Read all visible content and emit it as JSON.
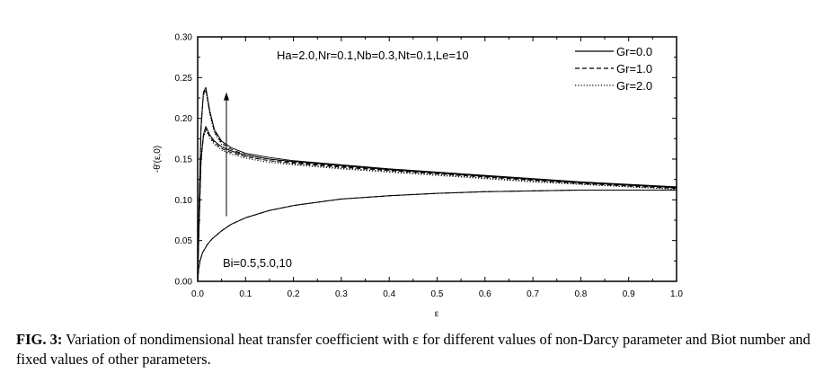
{
  "chart_data": {
    "type": "line",
    "xlabel": "ε",
    "ylabel": "-θ'(ε,0)",
    "xlim": [
      0.0,
      1.0
    ],
    "ylim": [
      0.0,
      0.3
    ],
    "x_ticks": [
      "0.0",
      "0.1",
      "0.2",
      "0.3",
      "0.4",
      "0.5",
      "0.6",
      "0.7",
      "0.8",
      "0.9",
      "1.0"
    ],
    "y_ticks": [
      "0.00",
      "0.05",
      "0.10",
      "0.15",
      "0.20",
      "0.25",
      "0.30"
    ],
    "grid": false,
    "legend_position": "top-right",
    "annotations": {
      "params": "Ha=2.0,Nr=0.1,Nb=0.3,Nt=0.1,Le=10",
      "bi": "Bi=0.5,5.0,10"
    },
    "series": [
      {
        "name": "Gr=0.0",
        "style": "solid"
      },
      {
        "name": "Gr=1.0",
        "style": "dashed"
      },
      {
        "name": "Gr=2.0",
        "style": "dotted"
      }
    ],
    "curves": [
      {
        "series": "Gr=0.0",
        "bi": 0.5,
        "x": [
          0.0,
          0.002,
          0.005,
          0.01,
          0.02,
          0.03,
          0.05,
          0.07,
          0.1,
          0.15,
          0.2,
          0.3,
          0.4,
          0.5,
          0.6,
          0.7,
          0.8,
          0.9,
          1.0
        ],
        "y": [
          0.0,
          0.015,
          0.025,
          0.035,
          0.045,
          0.052,
          0.062,
          0.07,
          0.078,
          0.087,
          0.093,
          0.101,
          0.105,
          0.108,
          0.11,
          0.111,
          0.112,
          0.112,
          0.112
        ]
      },
      {
        "series": "Gr=1.0",
        "bi": 0.5,
        "x": [
          0.0,
          0.002,
          0.005,
          0.01,
          0.02,
          0.03,
          0.05,
          0.07,
          0.1,
          0.15,
          0.2,
          0.3,
          0.4,
          0.5,
          0.6,
          0.7,
          0.8,
          0.9,
          1.0
        ],
        "y": [
          0.0,
          0.015,
          0.025,
          0.035,
          0.045,
          0.052,
          0.062,
          0.07,
          0.078,
          0.087,
          0.093,
          0.101,
          0.105,
          0.108,
          0.11,
          0.111,
          0.112,
          0.112,
          0.112
        ]
      },
      {
        "series": "Gr=2.0",
        "bi": 0.5,
        "x": [
          0.0,
          0.002,
          0.005,
          0.01,
          0.02,
          0.03,
          0.05,
          0.07,
          0.1,
          0.15,
          0.2,
          0.3,
          0.4,
          0.5,
          0.6,
          0.7,
          0.8,
          0.9,
          1.0
        ],
        "y": [
          0.0,
          0.015,
          0.025,
          0.035,
          0.045,
          0.052,
          0.062,
          0.07,
          0.078,
          0.087,
          0.093,
          0.101,
          0.105,
          0.108,
          0.11,
          0.111,
          0.112,
          0.112,
          0.112
        ]
      },
      {
        "series": "Gr=0.0",
        "bi": 5.0,
        "x": [
          0.0,
          0.003,
          0.007,
          0.012,
          0.017,
          0.025,
          0.035,
          0.05,
          0.07,
          0.1,
          0.15,
          0.2,
          0.3,
          0.4,
          0.5,
          0.6,
          0.7,
          0.8,
          0.9,
          1.0
        ],
        "y": [
          0.0,
          0.07,
          0.15,
          0.18,
          0.19,
          0.18,
          0.172,
          0.165,
          0.16,
          0.155,
          0.15,
          0.147,
          0.142,
          0.137,
          0.133,
          0.129,
          0.125,
          0.121,
          0.118,
          0.115
        ]
      },
      {
        "series": "Gr=1.0",
        "bi": 5.0,
        "x": [
          0.0,
          0.003,
          0.007,
          0.012,
          0.017,
          0.025,
          0.035,
          0.05,
          0.07,
          0.1,
          0.15,
          0.2,
          0.3,
          0.4,
          0.5,
          0.6,
          0.7,
          0.8,
          0.9,
          1.0
        ],
        "y": [
          0.0,
          0.07,
          0.148,
          0.178,
          0.188,
          0.178,
          0.17,
          0.163,
          0.158,
          0.153,
          0.148,
          0.145,
          0.14,
          0.136,
          0.132,
          0.128,
          0.124,
          0.12,
          0.117,
          0.114
        ]
      },
      {
        "series": "Gr=2.0",
        "bi": 5.0,
        "x": [
          0.0,
          0.003,
          0.007,
          0.012,
          0.017,
          0.025,
          0.035,
          0.05,
          0.07,
          0.1,
          0.15,
          0.2,
          0.3,
          0.4,
          0.5,
          0.6,
          0.7,
          0.8,
          0.9,
          1.0
        ],
        "y": [
          0.0,
          0.07,
          0.146,
          0.176,
          0.186,
          0.176,
          0.168,
          0.161,
          0.156,
          0.151,
          0.146,
          0.143,
          0.138,
          0.134,
          0.13,
          0.126,
          0.122,
          0.119,
          0.116,
          0.113
        ]
      },
      {
        "series": "Gr=0.0",
        "bi": 10,
        "x": [
          0.0,
          0.003,
          0.007,
          0.012,
          0.017,
          0.025,
          0.035,
          0.05,
          0.07,
          0.1,
          0.15,
          0.2,
          0.3,
          0.4,
          0.5,
          0.6,
          0.7,
          0.8,
          0.9,
          1.0
        ],
        "y": [
          0.0,
          0.09,
          0.19,
          0.232,
          0.238,
          0.21,
          0.186,
          0.172,
          0.164,
          0.157,
          0.152,
          0.148,
          0.143,
          0.138,
          0.134,
          0.13,
          0.126,
          0.122,
          0.119,
          0.116
        ]
      },
      {
        "series": "Gr=1.0",
        "bi": 10,
        "x": [
          0.0,
          0.003,
          0.007,
          0.012,
          0.017,
          0.025,
          0.035,
          0.05,
          0.07,
          0.1,
          0.15,
          0.2,
          0.3,
          0.4,
          0.5,
          0.6,
          0.7,
          0.8,
          0.9,
          1.0
        ],
        "y": [
          0.0,
          0.09,
          0.188,
          0.23,
          0.236,
          0.208,
          0.184,
          0.17,
          0.162,
          0.155,
          0.15,
          0.146,
          0.141,
          0.137,
          0.133,
          0.129,
          0.125,
          0.121,
          0.118,
          0.115
        ]
      },
      {
        "series": "Gr=2.0",
        "bi": 10,
        "x": [
          0.0,
          0.003,
          0.007,
          0.012,
          0.017,
          0.025,
          0.035,
          0.05,
          0.07,
          0.1,
          0.15,
          0.2,
          0.3,
          0.4,
          0.5,
          0.6,
          0.7,
          0.8,
          0.9,
          1.0
        ],
        "y": [
          0.0,
          0.09,
          0.186,
          0.228,
          0.234,
          0.206,
          0.182,
          0.168,
          0.16,
          0.153,
          0.148,
          0.144,
          0.139,
          0.135,
          0.131,
          0.127,
          0.123,
          0.119,
          0.116,
          0.113
        ]
      }
    ],
    "arrow": {
      "x": 0.06,
      "y_from": 0.08,
      "y_to": 0.232
    }
  },
  "caption": {
    "label": "FIG. 3:",
    "text": " Variation of nondimensional heat transfer coefficient with ε for different values of non-Darcy parameter and Biot number and fixed values of other parameters."
  },
  "colors": {
    "line": "#000000",
    "background": "#ffffff"
  }
}
